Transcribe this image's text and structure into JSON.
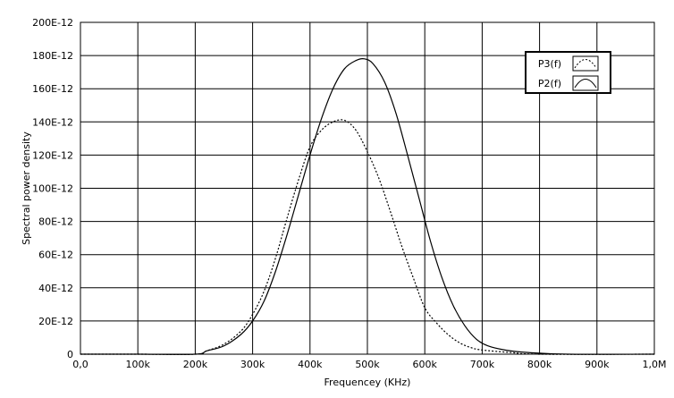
{
  "chart_data": {
    "type": "line",
    "xlabel": "Frequencey (KHz)",
    "ylabel": "Spectral power density",
    "xlim": [
      0,
      1000000
    ],
    "ylim": [
      0,
      2e-10
    ],
    "grid": true,
    "legend_position": "top-right",
    "x_ticks": [
      {
        "value": 0,
        "label": "0,0"
      },
      {
        "value": 100000,
        "label": "100k"
      },
      {
        "value": 200000,
        "label": "200k"
      },
      {
        "value": 300000,
        "label": "300k"
      },
      {
        "value": 400000,
        "label": "400k"
      },
      {
        "value": 500000,
        "label": "500k"
      },
      {
        "value": 600000,
        "label": "600k"
      },
      {
        "value": 700000,
        "label": "700k"
      },
      {
        "value": 800000,
        "label": "800k"
      },
      {
        "value": 900000,
        "label": "900k"
      },
      {
        "value": 1000000,
        "label": "1,0M"
      }
    ],
    "y_ticks": [
      {
        "value": 0,
        "label": "0"
      },
      {
        "value": 2e-11,
        "label": "20E-12"
      },
      {
        "value": 4e-11,
        "label": "40E-12"
      },
      {
        "value": 6e-11,
        "label": "60E-12"
      },
      {
        "value": 8e-11,
        "label": "80E-12"
      },
      {
        "value": 1e-10,
        "label": "100E-12"
      },
      {
        "value": 1.2e-10,
        "label": "120E-12"
      },
      {
        "value": 1.4e-10,
        "label": "140E-12"
      },
      {
        "value": 1.6e-10,
        "label": "160E-12"
      },
      {
        "value": 1.8e-10,
        "label": "180E-12"
      },
      {
        "value": 2e-10,
        "label": "200E-12"
      }
    ],
    "series": [
      {
        "name": "P3(f)",
        "style": "dotted",
        "color": "#000000",
        "points": [
          [
            0,
            0
          ],
          [
            100000,
            0
          ],
          [
            200000,
            0
          ],
          [
            220000,
            2e-12
          ],
          [
            250000,
            6e-12
          ],
          [
            280000,
            1.4e-11
          ],
          [
            300000,
            2.4e-11
          ],
          [
            320000,
            3.8e-11
          ],
          [
            340000,
            5.8e-11
          ],
          [
            360000,
            8.2e-11
          ],
          [
            380000,
            1.05e-10
          ],
          [
            400000,
            1.25e-10
          ],
          [
            420000,
            1.35e-10
          ],
          [
            440000,
            1.4e-10
          ],
          [
            460000,
            1.41e-10
          ],
          [
            480000,
            1.35e-10
          ],
          [
            500000,
            1.22e-10
          ],
          [
            520000,
            1.06e-10
          ],
          [
            540000,
            8.6e-11
          ],
          [
            560000,
            6.5e-11
          ],
          [
            580000,
            4.6e-11
          ],
          [
            600000,
            2.8e-11
          ],
          [
            620000,
            1.9e-11
          ],
          [
            640000,
            1.2e-11
          ],
          [
            660000,
            7e-12
          ],
          [
            680000,
            4e-12
          ],
          [
            700000,
            2.5e-12
          ],
          [
            750000,
            1e-12
          ],
          [
            800000,
            0
          ],
          [
            1000000,
            0
          ]
        ]
      },
      {
        "name": "P2(f)",
        "style": "solid",
        "color": "#000000",
        "points": [
          [
            0,
            0
          ],
          [
            100000,
            0
          ],
          [
            200000,
            0
          ],
          [
            220000,
            2e-12
          ],
          [
            250000,
            5e-12
          ],
          [
            280000,
            1.2e-11
          ],
          [
            300000,
            2e-11
          ],
          [
            320000,
            3.2e-11
          ],
          [
            340000,
            5e-11
          ],
          [
            360000,
            7.2e-11
          ],
          [
            380000,
            9.6e-11
          ],
          [
            400000,
            1.2e-10
          ],
          [
            420000,
            1.42e-10
          ],
          [
            440000,
            1.6e-10
          ],
          [
            460000,
            1.72e-10
          ],
          [
            480000,
            1.77e-10
          ],
          [
            495000,
            1.78e-10
          ],
          [
            510000,
            1.75e-10
          ],
          [
            530000,
            1.64e-10
          ],
          [
            550000,
            1.45e-10
          ],
          [
            570000,
            1.2e-10
          ],
          [
            590000,
            9.4e-11
          ],
          [
            610000,
            6.8e-11
          ],
          [
            630000,
            4.6e-11
          ],
          [
            650000,
            2.9e-11
          ],
          [
            670000,
            1.7e-11
          ],
          [
            690000,
            9e-12
          ],
          [
            710000,
            5e-12
          ],
          [
            740000,
            2.5e-12
          ],
          [
            780000,
            1e-12
          ],
          [
            850000,
            0
          ],
          [
            1000000,
            0
          ]
        ]
      }
    ]
  }
}
